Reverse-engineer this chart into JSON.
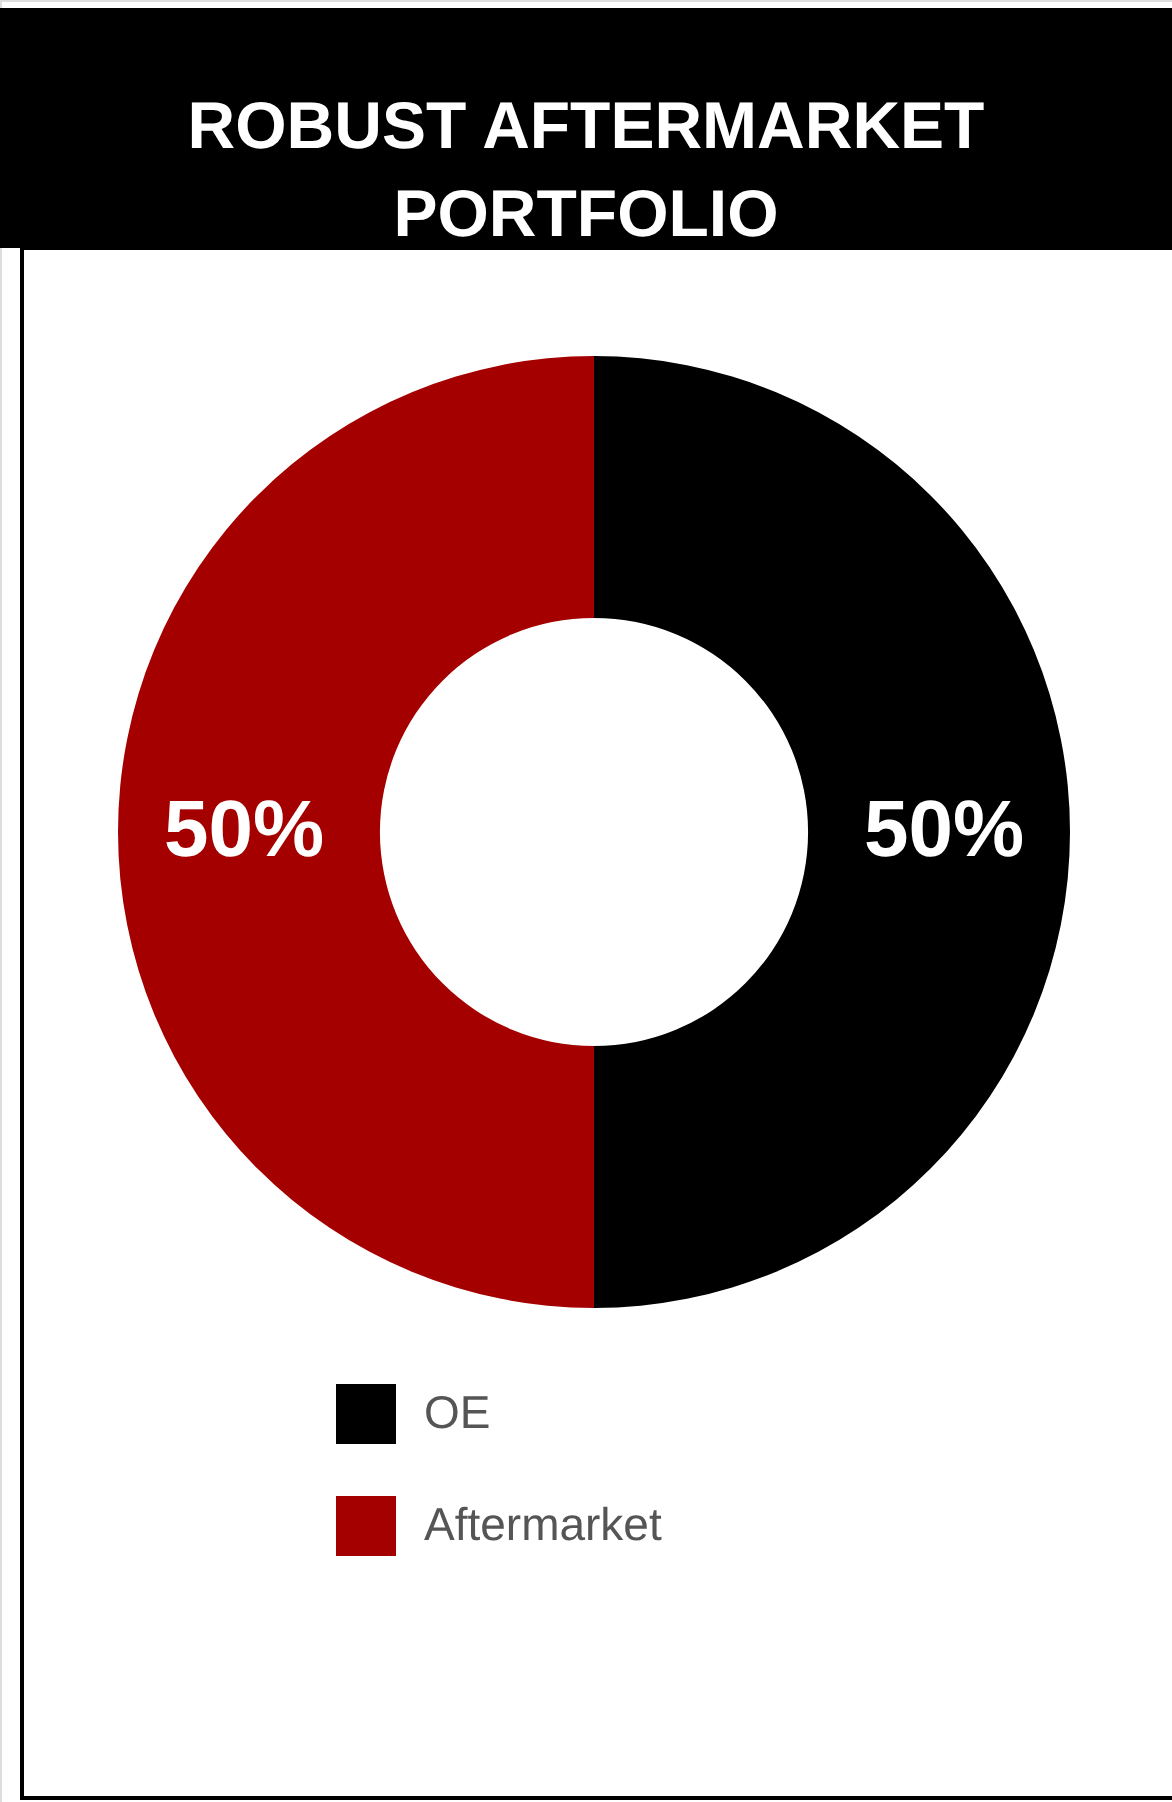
{
  "chart_data": {
    "type": "donut",
    "title": "ROBUST AFTERMARKET PORTFOLIO",
    "categories": [
      "OE",
      "Aftermarket"
    ],
    "values": [
      50,
      50
    ],
    "colors": [
      "#000000",
      "#a50000"
    ],
    "value_labels": [
      "50%",
      "50%"
    ],
    "legend": "bottom"
  }
}
